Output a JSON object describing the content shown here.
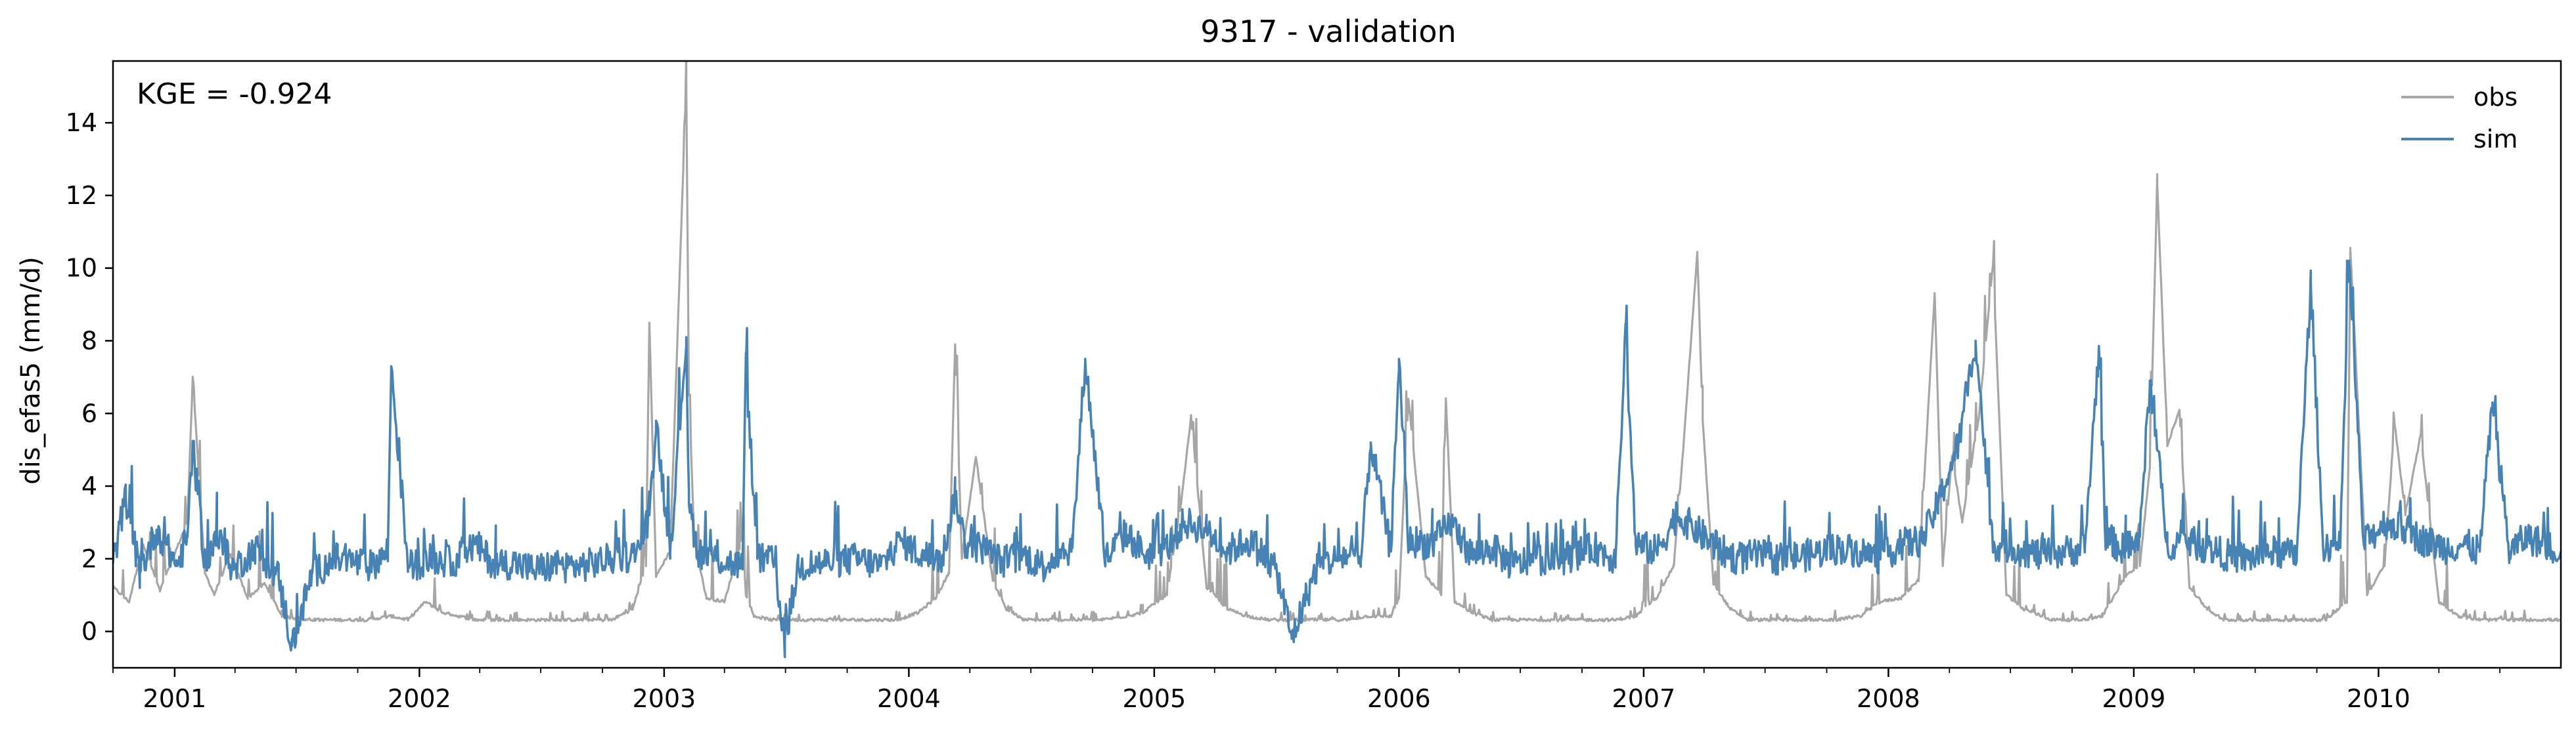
{
  "chart_data": {
    "type": "line",
    "title": "9317 - validation",
    "xlabel": "",
    "ylabel": "dis_efas5 (mm/d)",
    "annotation": "KGE = -0.924",
    "xlim": [
      "2000-10-01",
      "2010-09-30"
    ],
    "ylim": [
      -1.0,
      15.7
    ],
    "x_ticks": [
      "2001-01-01",
      "2002-01-01",
      "2003-01-01",
      "2004-01-01",
      "2005-01-01",
      "2006-01-01",
      "2007-01-01",
      "2008-01-01",
      "2009-01-01",
      "2010-01-01"
    ],
    "x_tick_labels": [
      "2001",
      "2002",
      "2003",
      "2004",
      "2005",
      "2006",
      "2007",
      "2008",
      "2009",
      "2010"
    ],
    "y_ticks": [
      0,
      2,
      4,
      6,
      8,
      10,
      12,
      14
    ],
    "y_tick_labels": [
      "0",
      "2",
      "4",
      "6",
      "8",
      "10",
      "12",
      "14"
    ],
    "grid": false,
    "legend_position": "top-right",
    "series": [
      {
        "name": "obs",
        "color": "#a6a6a6",
        "x": [
          "2000-10-01",
          "2000-10-25",
          "2000-11-15",
          "2000-12-10",
          "2001-01-20",
          "2001-01-28",
          "2001-02-15",
          "2001-03-01",
          "2001-03-25",
          "2001-04-20",
          "2001-05-15",
          "2001-06-10",
          "2001-07-15",
          "2001-09-01",
          "2001-10-15",
          "2001-11-20",
          "2001-12-15",
          "2002-01-10",
          "2002-02-05",
          "2002-03-01",
          "2002-03-25",
          "2002-04-20",
          "2002-05-20",
          "2002-06-15",
          "2002-07-20",
          "2002-09-01",
          "2002-10-15",
          "2002-11-15",
          "2002-12-05",
          "2002-12-10",
          "2002-12-20",
          "2003-01-10",
          "2003-02-03",
          "2003-02-07",
          "2003-02-15",
          "2003-03-05",
          "2003-04-01",
          "2003-04-28",
          "2003-05-03",
          "2003-05-15",
          "2003-06-10",
          "2003-07-15",
          "2003-09-01",
          "2003-11-01",
          "2003-12-15",
          "2004-01-15",
          "2004-02-10",
          "2004-03-01",
          "2004-03-10",
          "2004-03-20",
          "2004-04-10",
          "2004-05-05",
          "2004-05-25",
          "2004-06-20",
          "2004-07-20",
          "2004-09-01",
          "2004-10-15",
          "2004-11-20",
          "2004-12-15",
          "2005-01-20",
          "2005-02-10",
          "2005-02-25",
          "2005-03-20",
          "2005-04-20",
          "2005-05-20",
          "2005-06-20",
          "2005-07-20",
          "2005-09-01",
          "2005-10-15",
          "2005-11-15",
          "2005-12-20",
          "2006-01-01",
          "2006-01-15",
          "2006-02-10",
          "2006-03-05",
          "2006-03-12",
          "2006-03-25",
          "2006-04-20",
          "2006-05-20",
          "2006-06-20",
          "2006-07-20",
          "2006-09-01",
          "2006-10-15",
          "2006-11-20",
          "2006-12-20",
          "2007-01-20",
          "2007-02-15",
          "2007-03-01",
          "2007-03-22",
          "2007-03-30",
          "2007-04-15",
          "2007-05-10",
          "2007-06-05",
          "2007-07-10",
          "2007-09-01",
          "2007-10-15",
          "2007-11-20",
          "2007-12-20",
          "2008-01-20",
          "2008-02-15",
          "2008-03-10",
          "2008-03-22",
          "2008-04-05",
          "2008-04-20",
          "2008-05-15",
          "2008-06-05",
          "2008-06-25",
          "2008-07-20",
          "2008-09-01",
          "2008-10-15",
          "2008-11-15",
          "2008-12-20",
          "2009-01-10",
          "2009-01-25",
          "2009-02-05",
          "2009-02-20",
          "2009-03-10",
          "2009-03-25",
          "2009-04-20",
          "2009-05-15",
          "2009-06-10",
          "2009-07-15",
          "2009-09-01",
          "2009-10-15",
          "2009-11-15",
          "2009-11-20",
          "2009-12-15",
          "2010-01-10",
          "2010-01-25",
          "2010-02-10",
          "2010-03-05",
          "2010-04-01",
          "2010-05-01",
          "2010-06-01",
          "2010-07-15",
          "2010-09-30"
        ],
        "y": [
          1.2,
          0.8,
          2.4,
          1.1,
          3.0,
          7.0,
          1.6,
          1.0,
          2.1,
          0.9,
          1.3,
          0.4,
          0.3,
          0.3,
          0.3,
          0.4,
          0.3,
          0.8,
          0.5,
          0.4,
          0.3,
          0.3,
          0.3,
          0.3,
          0.3,
          0.3,
          0.3,
          0.6,
          1.8,
          8.5,
          1.5,
          2.2,
          15.1,
          6.5,
          2.5,
          0.9,
          0.8,
          2.6,
          1.0,
          0.4,
          0.3,
          0.3,
          0.3,
          0.3,
          0.3,
          0.5,
          0.9,
          1.6,
          7.9,
          2.0,
          4.8,
          1.4,
          0.6,
          0.3,
          0.3,
          0.3,
          0.3,
          0.4,
          0.5,
          1.0,
          3.5,
          5.9,
          1.2,
          0.6,
          0.4,
          0.3,
          0.3,
          0.3,
          0.3,
          0.4,
          0.4,
          0.9,
          6.4,
          1.5,
          1.0,
          6.4,
          0.8,
          0.5,
          0.3,
          0.3,
          0.3,
          0.3,
          0.3,
          0.3,
          0.4,
          0.9,
          1.8,
          5.0,
          10.4,
          5.8,
          1.3,
          0.6,
          0.3,
          0.3,
          0.3,
          0.3,
          0.4,
          0.8,
          0.9,
          1.4,
          9.3,
          1.8,
          4.8,
          3.0,
          5.9,
          10.1,
          1.0,
          0.6,
          0.3,
          0.3,
          0.4,
          1.5,
          1.8,
          4.5,
          12.3,
          5.1,
          6.1,
          1.2,
          0.6,
          0.3,
          0.3,
          0.3,
          0.3,
          0.3,
          0.8,
          10.5,
          1.0,
          1.8,
          5.7,
          3.2,
          5.4,
          0.8,
          0.4,
          0.3,
          0.3,
          0.3
        ]
      },
      {
        "name": "sim",
        "color": "#4682b4",
        "x": [
          "2000-10-01",
          "2000-10-20",
          "2000-11-10",
          "2000-12-05",
          "2001-01-05",
          "2001-01-20",
          "2001-01-28",
          "2001-02-15",
          "2001-03-05",
          "2001-03-30",
          "2001-05-01",
          "2001-06-05",
          "2001-06-25",
          "2001-07-25",
          "2001-09-01",
          "2001-10-20",
          "2001-11-15",
          "2001-11-20",
          "2001-12-15",
          "2002-01-20",
          "2002-02-20",
          "2002-03-25",
          "2002-04-25",
          "2002-05-20",
          "2002-06-20",
          "2002-07-20",
          "2002-09-01",
          "2002-10-15",
          "2002-11-20",
          "2002-12-10",
          "2002-12-20",
          "2003-01-10",
          "2003-02-03",
          "2003-02-07",
          "2003-02-20",
          "2003-03-20",
          "2003-04-28",
          "2003-05-03",
          "2003-05-20",
          "2003-06-15",
          "2003-06-30",
          "2003-07-20",
          "2003-09-01",
          "2003-10-15",
          "2003-11-20",
          "2003-12-20",
          "2004-01-20",
          "2004-02-20",
          "2004-03-10",
          "2004-03-25",
          "2004-04-20",
          "2004-05-20",
          "2004-06-20",
          "2004-07-20",
          "2004-08-15",
          "2004-09-01",
          "2004-09-20",
          "2004-10-20",
          "2004-11-20",
          "2004-12-20",
          "2005-01-20",
          "2005-02-15",
          "2005-03-20",
          "2005-04-20",
          "2005-05-20",
          "2005-06-20",
          "2005-07-05",
          "2005-07-25",
          "2005-09-01",
          "2005-10-15",
          "2005-11-05",
          "2005-11-20",
          "2005-12-20",
          "2006-01-01",
          "2006-01-15",
          "2006-02-20",
          "2006-03-20",
          "2006-04-20",
          "2006-05-20",
          "2006-06-20",
          "2006-07-20",
          "2006-09-01",
          "2006-10-20",
          "2006-11-20",
          "2006-12-05",
          "2006-12-20",
          "2007-01-20",
          "2007-02-20",
          "2007-03-20",
          "2007-04-20",
          "2007-05-20",
          "2007-06-20",
          "2007-07-20",
          "2007-09-01",
          "2007-10-20",
          "2007-11-20",
          "2007-12-20",
          "2008-01-20",
          "2008-02-20",
          "2008-03-15",
          "2008-04-15",
          "2008-05-10",
          "2008-06-05",
          "2008-07-05",
          "2008-08-15",
          "2008-09-20",
          "2008-10-20",
          "2008-11-10",
          "2008-11-20",
          "2008-12-20",
          "2009-01-10",
          "2009-01-25",
          "2009-02-20",
          "2009-03-20",
          "2009-04-20",
          "2009-05-20",
          "2009-06-20",
          "2009-07-20",
          "2009-09-01",
          "2009-09-22",
          "2009-10-10",
          "2009-11-05",
          "2009-11-18",
          "2009-12-10",
          "2010-01-10",
          "2010-02-10",
          "2010-03-10",
          "2010-04-10",
          "2010-05-10",
          "2010-06-01",
          "2010-06-20",
          "2010-07-15",
          "2010-08-10",
          "2010-09-30"
        ],
        "y": [
          1.9,
          3.7,
          1.6,
          2.8,
          1.8,
          2.6,
          5.1,
          1.9,
          2.6,
          1.7,
          2.3,
          1.5,
          -0.4,
          1.6,
          2.0,
          1.8,
          2.2,
          7.3,
          1.8,
          2.0,
          1.9,
          2.4,
          1.8,
          1.9,
          1.7,
          1.8,
          1.8,
          2.0,
          2.1,
          3.2,
          5.8,
          2.2,
          8.1,
          3.5,
          2.2,
          2.0,
          1.8,
          7.3,
          2.0,
          1.9,
          -0.3,
          1.8,
          1.9,
          2.0,
          1.8,
          2.5,
          2.1,
          2.0,
          3.8,
          2.4,
          2.3,
          1.9,
          2.1,
          1.8,
          2.2,
          2.3,
          7.5,
          2.0,
          2.7,
          2.1,
          2.3,
          3.0,
          2.8,
          2.2,
          2.5,
          2.0,
          1.5,
          -0.2,
          1.8,
          2.1,
          1.9,
          5.2,
          2.2,
          7.5,
          2.5,
          2.4,
          3.0,
          2.1,
          2.3,
          1.8,
          2.0,
          2.0,
          2.3,
          2.0,
          8.2,
          2.4,
          2.2,
          3.2,
          2.8,
          2.3,
          2.0,
          2.1,
          2.0,
          2.1,
          2.3,
          2.2,
          2.0,
          2.4,
          2.5,
          3.5,
          5.2,
          8.0,
          2.4,
          2.3,
          2.1,
          2.2,
          2.3,
          7.8,
          2.6,
          2.2,
          2.6,
          6.9,
          2.4,
          2.5,
          2.3,
          2.1,
          2.0,
          2.2,
          2.1,
          9.6,
          2.4,
          2.3,
          10.2,
          2.4,
          3.0,
          2.8,
          2.5,
          2.3,
          2.4,
          2.2,
          6.3,
          2.2,
          2.6,
          2.2
        ]
      }
    ]
  }
}
